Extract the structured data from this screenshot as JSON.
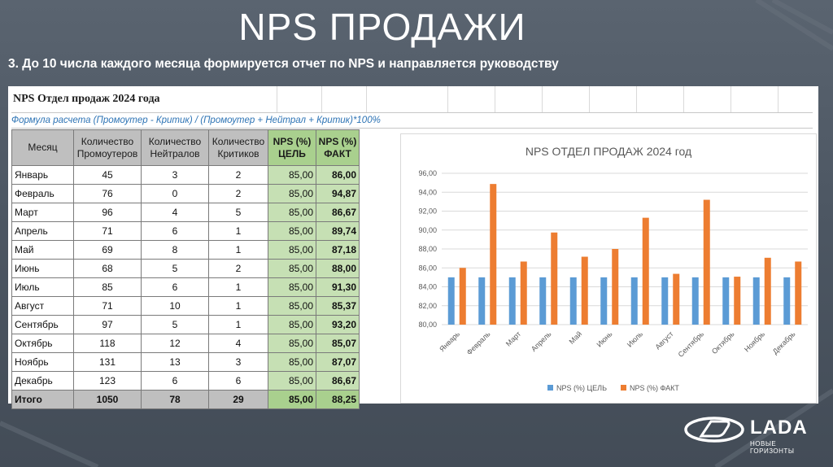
{
  "slide": {
    "title": "NPS ПРОДАЖИ",
    "subtitle": "3. До 10 числа каждого месяца формируется отчет по NPS и направляется руководству"
  },
  "sheet": {
    "title": "NPS Отдел продаж 2024 года",
    "formula": "Формула расчета (Промоутер - Критик) / (Промоутер + Нейтрал + Критик)*100%",
    "headers": {
      "month": "Месяц",
      "promoters_1": "Количество",
      "promoters_2": "Промоутеров",
      "neutrals_1": "Количество",
      "neutrals_2": "Нейтралов",
      "critics_1": "Количество",
      "critics_2": "Критиков",
      "goal_1": "NPS (%)",
      "goal_2": "ЦЕЛЬ",
      "fact_1": "NPS (%)",
      "fact_2": "ФАКТ"
    },
    "rows": [
      {
        "month": "Январь",
        "promoters": "45",
        "neutrals": "3",
        "critics": "2",
        "goal": "85,00",
        "fact": "86,00"
      },
      {
        "month": "Февраль",
        "promoters": "76",
        "neutrals": "0",
        "critics": "2",
        "goal": "85,00",
        "fact": "94,87"
      },
      {
        "month": "Март",
        "promoters": "96",
        "neutrals": "4",
        "critics": "5",
        "goal": "85,00",
        "fact": "86,67"
      },
      {
        "month": "Апрель",
        "promoters": "71",
        "neutrals": "6",
        "critics": "1",
        "goal": "85,00",
        "fact": "89,74"
      },
      {
        "month": "Май",
        "promoters": "69",
        "neutrals": "8",
        "critics": "1",
        "goal": "85,00",
        "fact": "87,18"
      },
      {
        "month": "Июнь",
        "promoters": "68",
        "neutrals": "5",
        "critics": "2",
        "goal": "85,00",
        "fact": "88,00"
      },
      {
        "month": "Июль",
        "promoters": "85",
        "neutrals": "6",
        "critics": "1",
        "goal": "85,00",
        "fact": "91,30"
      },
      {
        "month": "Август",
        "promoters": "71",
        "neutrals": "10",
        "critics": "1",
        "goal": "85,00",
        "fact": "85,37"
      },
      {
        "month": "Сентябрь",
        "promoters": "97",
        "neutrals": "5",
        "critics": "1",
        "goal": "85,00",
        "fact": "93,20"
      },
      {
        "month": "Октябрь",
        "promoters": "118",
        "neutrals": "12",
        "critics": "4",
        "goal": "85,00",
        "fact": "85,07"
      },
      {
        "month": "Ноябрь",
        "promoters": "131",
        "neutrals": "13",
        "critics": "3",
        "goal": "85,00",
        "fact": "87,07"
      },
      {
        "month": "Декабрь",
        "promoters": "123",
        "neutrals": "6",
        "critics": "6",
        "goal": "85,00",
        "fact": "86,67"
      }
    ],
    "total": {
      "month": "Итого",
      "promoters": "1050",
      "neutrals": "78",
      "critics": "29",
      "goal": "85,00",
      "fact": "88,25"
    }
  },
  "chart_data": {
    "type": "bar",
    "title": "NPS ОТДЕЛ ПРОДАЖ 2024 год",
    "categories": [
      "Январь",
      "Февраль",
      "Март",
      "Апрель",
      "Май",
      "Июнь",
      "Июль",
      "Август",
      "Сентябрь",
      "Октябрь",
      "Ноябрь",
      "Декабрь"
    ],
    "series": [
      {
        "name": "NPS (%) ЦЕЛЬ",
        "color": "#5b9bd5",
        "values": [
          85,
          85,
          85,
          85,
          85,
          85,
          85,
          85,
          85,
          85,
          85,
          85
        ]
      },
      {
        "name": "NPS (%) ФАКТ",
        "color": "#ed7d31",
        "values": [
          86.0,
          94.87,
          86.67,
          89.74,
          87.18,
          88.0,
          91.3,
          85.37,
          93.2,
          85.07,
          87.07,
          86.67
        ]
      }
    ],
    "ylim": [
      80,
      96
    ],
    "yticks": [
      "80,00",
      "82,00",
      "84,00",
      "86,00",
      "88,00",
      "90,00",
      "92,00",
      "94,00",
      "96,00"
    ],
    "grid": true,
    "legend": "bottom"
  },
  "brand": {
    "name": "LADA",
    "tagline": "НОВЫЕ ГОРИЗОНТЫ"
  }
}
